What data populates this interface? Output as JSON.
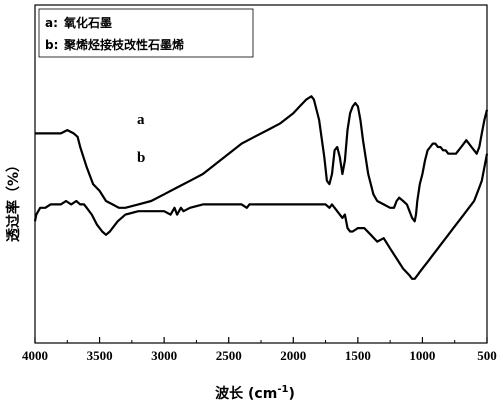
{
  "chart_data": {
    "type": "line",
    "title": "",
    "xlabel": "波长 (cm",
    "xlabel_sup": "-1",
    "xlabel_close": ")",
    "ylabel": "透过率（%）",
    "xlim": [
      4000,
      500
    ],
    "x_ticks": [
      4000,
      3500,
      3000,
      2500,
      2000,
      1500,
      1000,
      500
    ],
    "y_ticks_shown": false,
    "legend": {
      "placement": "top-left",
      "entries": [
        {
          "key": "a:",
          "text": "氧化石墨"
        },
        {
          "key": "b:",
          "text": "聚烯烃接枝改性石墨烯"
        }
      ]
    },
    "series": [
      {
        "name": "a",
        "x": [
          4000,
          3900,
          3800,
          3750,
          3700,
          3670,
          3650,
          3600,
          3550,
          3500,
          3450,
          3400,
          3350,
          3300,
          3200,
          3100,
          3000,
          2900,
          2800,
          2700,
          2600,
          2500,
          2400,
          2300,
          2200,
          2100,
          2000,
          1950,
          1900,
          1860,
          1840,
          1800,
          1760,
          1740,
          1720,
          1700,
          1680,
          1660,
          1640,
          1620,
          1600,
          1580,
          1560,
          1540,
          1520,
          1500,
          1480,
          1460,
          1440,
          1420,
          1400,
          1380,
          1350,
          1300,
          1250,
          1220,
          1200,
          1180,
          1150,
          1120,
          1100,
          1080,
          1060,
          1050,
          1040,
          1020,
          1000,
          980,
          960,
          940,
          920,
          900,
          880,
          860,
          840,
          820,
          800,
          780,
          760,
          740,
          720,
          700,
          680,
          660,
          640,
          620,
          600,
          580,
          560,
          540,
          520,
          500
        ],
        "y": [
          0.62,
          0.62,
          0.62,
          0.63,
          0.62,
          0.61,
          0.58,
          0.52,
          0.47,
          0.45,
          0.42,
          0.41,
          0.4,
          0.4,
          0.41,
          0.42,
          0.44,
          0.46,
          0.48,
          0.5,
          0.53,
          0.56,
          0.59,
          0.61,
          0.63,
          0.65,
          0.68,
          0.7,
          0.72,
          0.73,
          0.72,
          0.66,
          0.55,
          0.48,
          0.47,
          0.5,
          0.57,
          0.58,
          0.55,
          0.5,
          0.54,
          0.63,
          0.68,
          0.7,
          0.71,
          0.7,
          0.66,
          0.6,
          0.55,
          0.5,
          0.47,
          0.44,
          0.42,
          0.41,
          0.4,
          0.4,
          0.42,
          0.43,
          0.42,
          0.41,
          0.39,
          0.37,
          0.36,
          0.38,
          0.42,
          0.47,
          0.5,
          0.54,
          0.57,
          0.58,
          0.59,
          0.59,
          0.58,
          0.58,
          0.57,
          0.57,
          0.56,
          0.56,
          0.56,
          0.56,
          0.57,
          0.58,
          0.59,
          0.6,
          0.59,
          0.58,
          0.57,
          0.56,
          0.58,
          0.62,
          0.66,
          0.69
        ]
      },
      {
        "name": "b",
        "x": [
          4000,
          3990,
          3960,
          3920,
          3880,
          3840,
          3800,
          3760,
          3720,
          3680,
          3650,
          3620,
          3600,
          3560,
          3520,
          3480,
          3450,
          3420,
          3400,
          3360,
          3300,
          3200,
          3100,
          3000,
          2950,
          2920,
          2900,
          2870,
          2850,
          2800,
          2700,
          2600,
          2500,
          2400,
          2360,
          2340,
          2300,
          2200,
          2100,
          2000,
          1900,
          1800,
          1750,
          1720,
          1700,
          1680,
          1660,
          1640,
          1620,
          1600,
          1580,
          1560,
          1540,
          1500,
          1450,
          1400,
          1350,
          1300,
          1250,
          1200,
          1150,
          1100,
          1080,
          1060,
          1040,
          1020,
          1000,
          960,
          920,
          880,
          840,
          800,
          760,
          720,
          680,
          640,
          600,
          580,
          560,
          540,
          520,
          500
        ],
        "y": [
          0.36,
          0.38,
          0.4,
          0.4,
          0.41,
          0.41,
          0.41,
          0.42,
          0.41,
          0.42,
          0.41,
          0.41,
          0.4,
          0.38,
          0.35,
          0.33,
          0.32,
          0.33,
          0.34,
          0.36,
          0.38,
          0.39,
          0.39,
          0.39,
          0.38,
          0.4,
          0.38,
          0.4,
          0.39,
          0.4,
          0.41,
          0.41,
          0.41,
          0.41,
          0.4,
          0.41,
          0.41,
          0.41,
          0.41,
          0.41,
          0.41,
          0.41,
          0.41,
          0.4,
          0.41,
          0.4,
          0.39,
          0.38,
          0.37,
          0.38,
          0.34,
          0.33,
          0.33,
          0.34,
          0.34,
          0.32,
          0.3,
          0.31,
          0.28,
          0.25,
          0.22,
          0.2,
          0.19,
          0.19,
          0.2,
          0.21,
          0.22,
          0.24,
          0.26,
          0.28,
          0.3,
          0.32,
          0.34,
          0.36,
          0.38,
          0.4,
          0.42,
          0.44,
          0.46,
          0.48,
          0.52,
          0.56
        ]
      }
    ]
  }
}
